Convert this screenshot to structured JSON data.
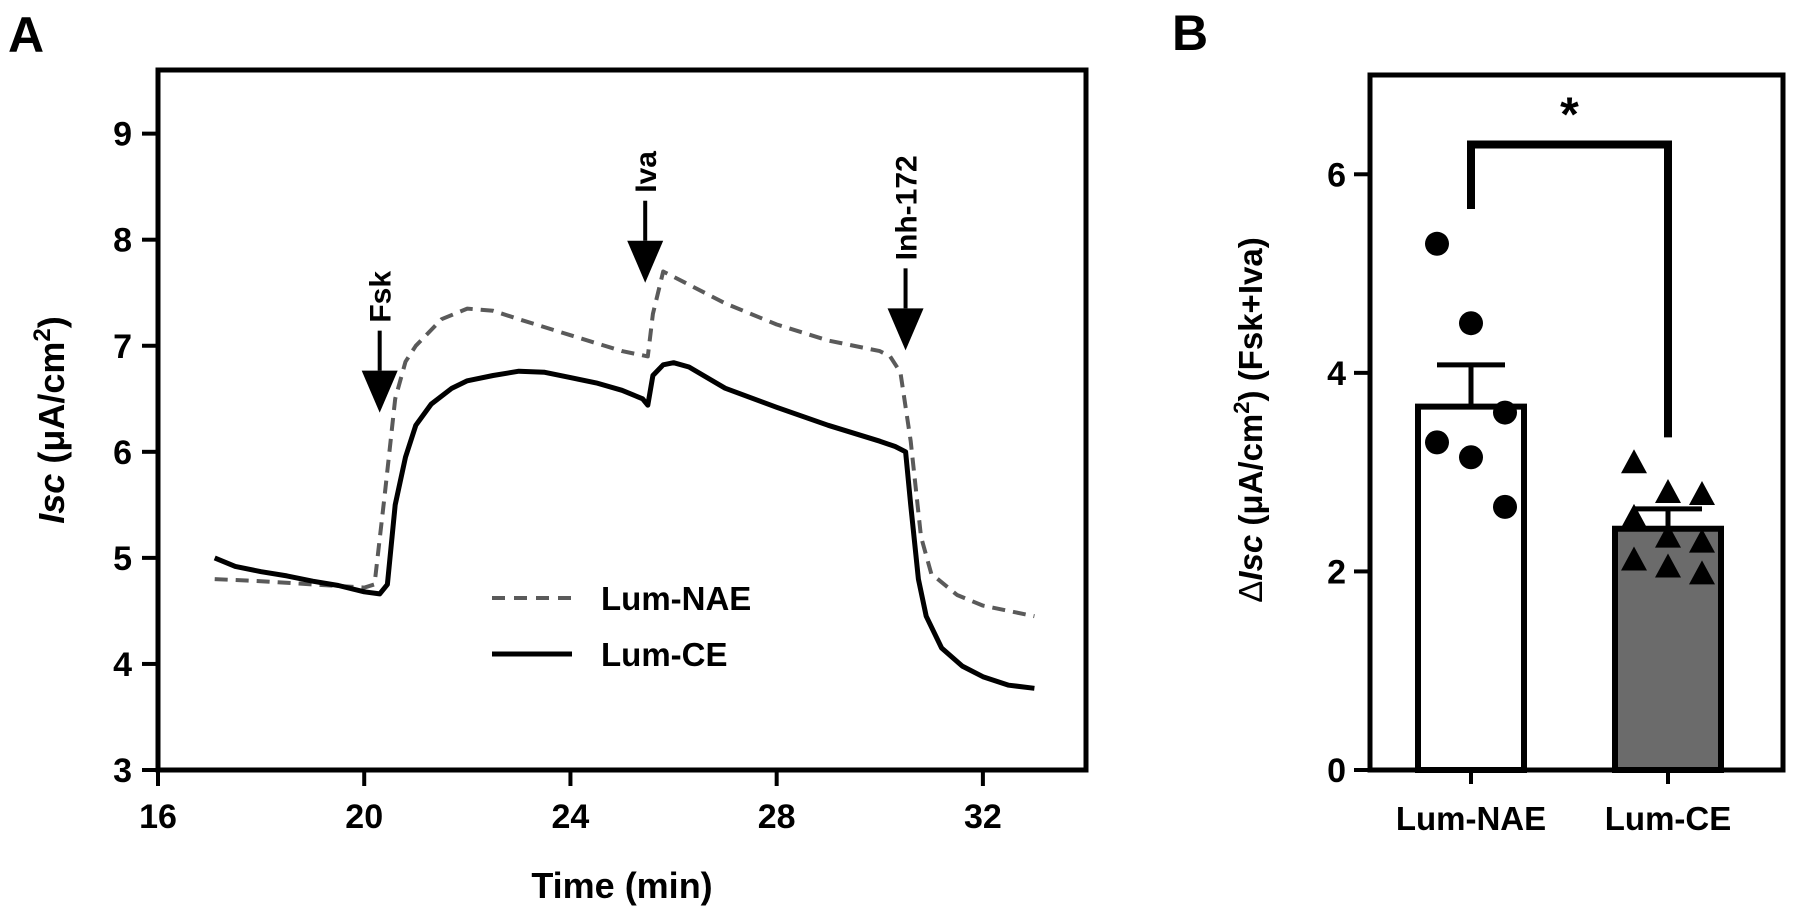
{
  "chart_data": [
    {
      "panel_label": "A",
      "type": "line",
      "xlabel": "Time (min)",
      "ylabel": {
        "italic": "Isc",
        "rest": " (μA/cm",
        "sup": "2",
        "close": ")"
      },
      "xlim": [
        16,
        34
      ],
      "ylim": [
        3,
        9.6
      ],
      "xticks": [
        16,
        20,
        24,
        28,
        32
      ],
      "yticks": [
        3,
        4,
        5,
        6,
        7,
        8,
        9
      ],
      "grid": false,
      "legend_position": "bottom-center",
      "series": [
        {
          "name": "Lum-NAE",
          "style": "dashed",
          "color": "#5a5a5a",
          "x": [
            17.1,
            18,
            19,
            20,
            20.2,
            20.4,
            20.6,
            20.8,
            21,
            21.5,
            22,
            22.5,
            23,
            24,
            25,
            25.5,
            25.6,
            25.8,
            26,
            27,
            28,
            29,
            30,
            30.2,
            30.4,
            30.6,
            30.8,
            31,
            31.5,
            32,
            32.5,
            33
          ],
          "y": [
            4.8,
            4.78,
            4.75,
            4.72,
            4.75,
            5.6,
            6.5,
            6.85,
            7.0,
            7.25,
            7.35,
            7.33,
            7.25,
            7.1,
            6.95,
            6.9,
            7.3,
            7.7,
            7.65,
            7.4,
            7.2,
            7.05,
            6.95,
            6.9,
            6.75,
            6.1,
            5.2,
            4.85,
            4.65,
            4.55,
            4.5,
            4.45
          ]
        },
        {
          "name": "Lum-CE",
          "style": "solid",
          "color": "#000000",
          "x": [
            17.1,
            17.5,
            18,
            18.5,
            19,
            19.5,
            20,
            20.3,
            20.45,
            20.6,
            20.8,
            21,
            21.3,
            21.7,
            22,
            22.5,
            23,
            23.5,
            24,
            24.5,
            25,
            25.4,
            25.5,
            25.6,
            25.8,
            26,
            26.3,
            27,
            28,
            29,
            30,
            30.3,
            30.5,
            30.6,
            30.75,
            30.9,
            31.2,
            31.6,
            32,
            32.5,
            33
          ],
          "y": [
            5.0,
            4.92,
            4.87,
            4.83,
            4.78,
            4.74,
            4.68,
            4.66,
            4.75,
            5.5,
            5.95,
            6.25,
            6.45,
            6.6,
            6.67,
            6.72,
            6.76,
            6.75,
            6.7,
            6.65,
            6.58,
            6.5,
            6.44,
            6.72,
            6.82,
            6.84,
            6.8,
            6.6,
            6.42,
            6.25,
            6.1,
            6.05,
            6.0,
            5.5,
            4.8,
            4.45,
            4.15,
            3.98,
            3.88,
            3.8,
            3.77
          ]
        }
      ],
      "annotations": [
        {
          "label": "Fsk",
          "x": 20.3
        },
        {
          "label": "Iva",
          "x": 25.45
        },
        {
          "label": "Inh-172",
          "x": 30.5
        }
      ]
    },
    {
      "panel_label": "B",
      "type": "bar",
      "categories": [
        "Lum-NAE",
        "Lum-CE"
      ],
      "ylabel": {
        "delta": "Δ",
        "italic": "Isc",
        "rest": " (μA/cm",
        "sup": "2",
        "close": ") (Fsk+Iva)"
      },
      "ylim": [
        0,
        7
      ],
      "yticks": [
        0,
        2,
        4,
        6
      ],
      "grid": false,
      "series": [
        {
          "values": [
            3.66,
            2.43
          ],
          "sem": [
            0.42,
            0.2
          ],
          "fills": [
            "#ffffff",
            "#6b6b6b"
          ]
        }
      ],
      "points": [
        {
          "category": "Lum-NAE",
          "marker": "circle",
          "values": [
            5.3,
            4.5,
            3.6,
            3.3,
            3.15,
            2.65
          ]
        },
        {
          "category": "Lum-CE",
          "marker": "triangle",
          "values": [
            3.1,
            2.8,
            2.78,
            2.55,
            2.35,
            2.3,
            2.12,
            2.05,
            1.98
          ]
        }
      ],
      "significance": {
        "label": "*"
      }
    }
  ]
}
